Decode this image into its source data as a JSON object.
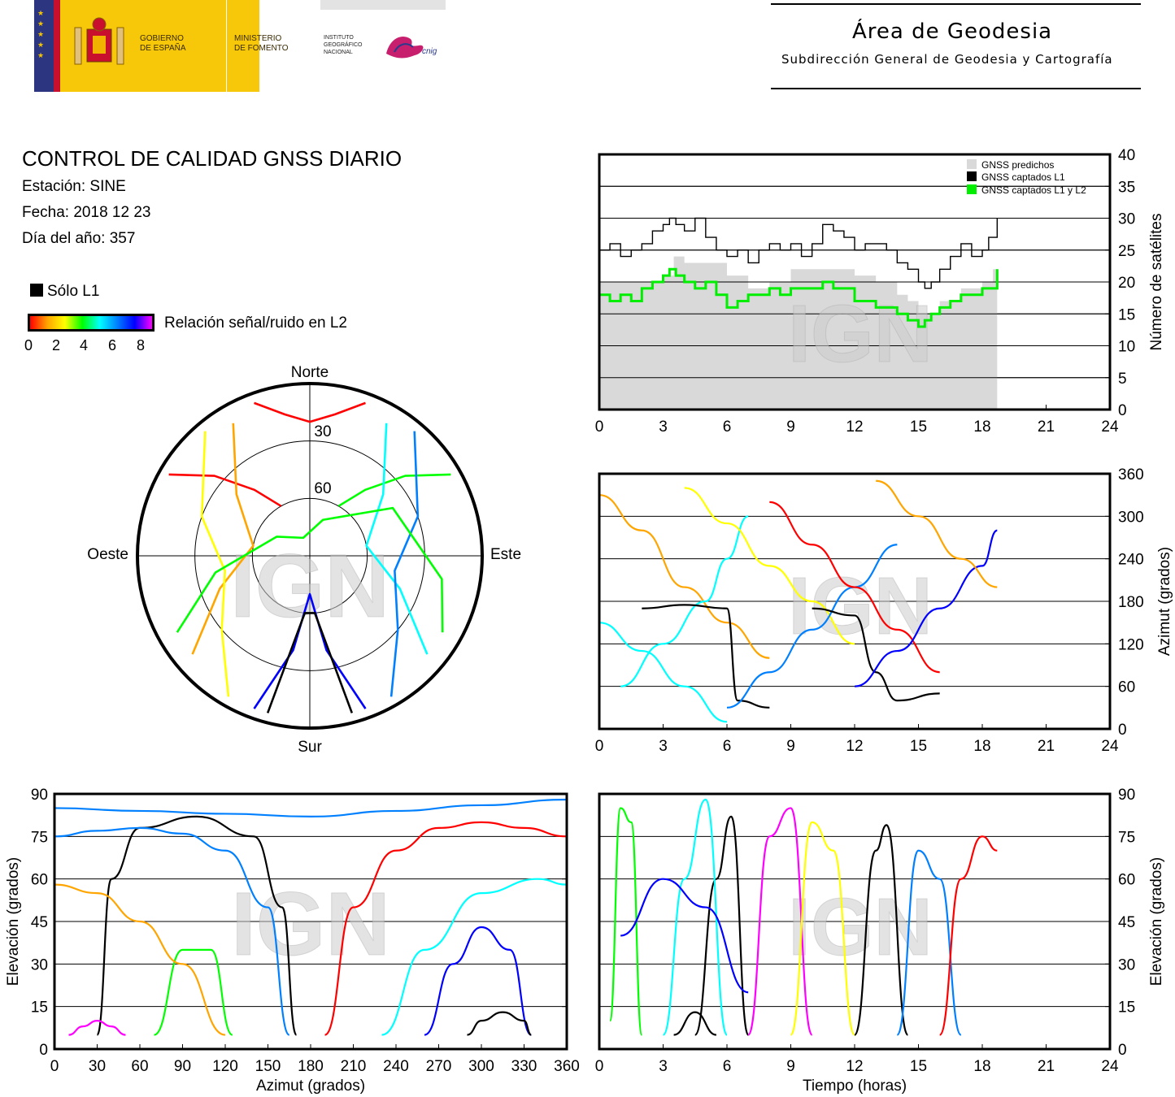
{
  "header": {
    "gov_line1": "GOBIERNO",
    "gov_line2": "DE ESPAÑA",
    "min_line1": "MINISTERIO",
    "min_line2": "DE FOMENTO",
    "ign_line1": "INSTITUTO",
    "ign_line2": "GEOGRÁFICO",
    "ign_line3": "NACIONAL",
    "cnig": "cnig",
    "area_title": "Área de Geodesia",
    "area_subtitle": "Subdirección General de Geodesia y Cartografía"
  },
  "info": {
    "title": "CONTROL DE CALIDAD GNSS DIARIO",
    "station": "Estación: SINE",
    "date": "Fecha: 2018 12 23",
    "doy": "Día del año: 357"
  },
  "legend": {
    "l1_only": "Sólo L1",
    "snr_label": "Relación señal/ruido en L2",
    "snr_ticks": [
      "0",
      "2",
      "4",
      "6",
      "8"
    ],
    "snr_colors": [
      "#ff0000",
      "#ffa500",
      "#ffff00",
      "#00ff00",
      "#00ffff",
      "#0080ff",
      "#0000ff",
      "#ff00ff"
    ],
    "l1_color": "#000000"
  },
  "watermark": "IGN",
  "chart_data": [
    {
      "id": "satellite-count",
      "type": "line",
      "ylabel": "Número de satélites",
      "x_ticks": [
        "0",
        "3",
        "6",
        "9",
        "12",
        "15",
        "18",
        "21",
        "24"
      ],
      "y_ticks": [
        "0",
        "5",
        "10",
        "15",
        "20",
        "25",
        "30",
        "35",
        "40"
      ],
      "xlim": [
        0,
        24
      ],
      "ylim": [
        0,
        40
      ],
      "grid": true,
      "legend_position": "top-right",
      "series": [
        {
          "name": "GNSS predichos",
          "color": "#d9d9d9",
          "x": [
            0,
            1,
            2,
            3,
            3.5,
            4,
            5,
            6,
            7,
            8,
            9,
            10,
            11,
            12,
            13,
            14,
            14.5,
            15,
            15.5,
            16,
            17,
            18,
            18.5,
            18.7
          ],
          "values": [
            20,
            20,
            20,
            21,
            24,
            23,
            23,
            21,
            19,
            20,
            22,
            22,
            22,
            21,
            20,
            18,
            17,
            15,
            15,
            17,
            19,
            20,
            22,
            24
          ]
        },
        {
          "name": "GNSS captados L1",
          "color": "#000000",
          "x": [
            0,
            0.5,
            1,
            1.5,
            2,
            2.5,
            3,
            3.3,
            3.6,
            4,
            4.5,
            5,
            5.5,
            6,
            6.5,
            7,
            7.5,
            8,
            8.5,
            9,
            9.5,
            10,
            10.5,
            11,
            11.5,
            12,
            12.5,
            13,
            13.5,
            14,
            14.5,
            15,
            15.3,
            15.6,
            16,
            16.5,
            17,
            17.5,
            18,
            18.3,
            18.7
          ],
          "values": [
            25,
            26,
            24,
            25,
            26,
            28,
            29,
            30,
            29,
            28,
            30,
            27,
            25,
            24,
            25,
            23,
            25,
            26,
            25,
            26,
            24,
            26,
            29,
            28,
            27,
            25,
            26,
            26,
            25,
            23,
            22,
            20,
            19,
            20,
            22,
            24,
            26,
            24,
            25,
            27,
            30
          ]
        },
        {
          "name": "GNSS captados L1 y L2",
          "color": "#00ee00",
          "x": [
            0,
            0.5,
            1,
            1.5,
            2,
            2.5,
            3,
            3.3,
            3.6,
            4,
            4.5,
            5,
            5.5,
            6,
            6.5,
            7,
            7.5,
            8,
            8.5,
            9,
            9.5,
            10,
            10.5,
            11,
            11.5,
            12,
            12.5,
            13,
            13.5,
            14,
            14.5,
            15,
            15.3,
            15.6,
            16,
            16.5,
            17,
            17.5,
            18,
            18.3,
            18.7
          ],
          "values": [
            18,
            17,
            18,
            17,
            19,
            20,
            21,
            22,
            21,
            20,
            19,
            20,
            18,
            16,
            17,
            18,
            18,
            19,
            18,
            19,
            19,
            19,
            20,
            19,
            19,
            17,
            17,
            16,
            16,
            15,
            14,
            13,
            14,
            15,
            16,
            17,
            18,
            18,
            19,
            19,
            22
          ]
        }
      ]
    },
    {
      "id": "polar-skyplot",
      "type": "scatter",
      "direction_labels": {
        "north": "Norte",
        "south": "Sur",
        "west": "Oeste",
        "east": "Este"
      },
      "ring_labels": [
        "30",
        "60"
      ],
      "tracks": [
        {
          "az": [
            300,
            310,
            320,
            330
          ],
          "el": [
            5,
            25,
            45,
            60
          ]
        },
        {
          "az": [
            60,
            50,
            40,
            30
          ],
          "el": [
            5,
            25,
            45,
            60
          ]
        },
        {
          "az": [
            200,
            190,
            180,
            170,
            160
          ],
          "el": [
            5,
            40,
            70,
            40,
            5
          ]
        },
        {
          "az": [
            230,
            250,
            280,
            310,
            330
          ],
          "el": [
            10,
            40,
            60,
            40,
            10
          ]
        },
        {
          "az": [
            130,
            110,
            80,
            50,
            30
          ],
          "el": [
            10,
            40,
            60,
            40,
            10
          ]
        },
        {
          "az": [
            165,
            175,
            185,
            195
          ],
          "el": [
            5,
            60,
            60,
            5
          ]
        },
        {
          "az": [
            210,
            230,
            260,
            290,
            320
          ],
          "el": [
            5,
            30,
            45,
            30,
            5
          ]
        },
        {
          "az": [
            150,
            130,
            100,
            70,
            40
          ],
          "el": [
            5,
            30,
            45,
            30,
            5
          ]
        },
        {
          "az": [
            340,
            350,
            0,
            10,
            20
          ],
          "el": [
            5,
            15,
            20,
            15,
            5
          ]
        },
        {
          "az": [
            240,
            260,
            300,
            340,
            20,
            60,
            100,
            120
          ],
          "el": [
            10,
            40,
            70,
            80,
            70,
            40,
            20,
            10
          ]
        }
      ]
    },
    {
      "id": "azimuth-time",
      "type": "scatter",
      "ylabel": "Azimut (grados)",
      "x_ticks": [
        "0",
        "3",
        "6",
        "9",
        "12",
        "15",
        "18",
        "21",
        "24"
      ],
      "y_ticks": [
        "0",
        "60",
        "120",
        "180",
        "240",
        "300",
        "360"
      ],
      "xlim": [
        0,
        24
      ],
      "ylim": [
        0,
        360
      ],
      "grid": true,
      "tracks": [
        {
          "x": [
            0,
            2,
            4,
            6,
            8
          ],
          "y": [
            330,
            280,
            200,
            150,
            100
          ]
        },
        {
          "x": [
            1,
            3,
            5,
            6,
            7
          ],
          "y": [
            60,
            120,
            180,
            240,
            300
          ]
        },
        {
          "x": [
            2,
            4,
            6,
            6.5,
            8
          ],
          "y": [
            170,
            175,
            170,
            40,
            30
          ]
        },
        {
          "x": [
            4,
            6,
            8,
            10,
            12
          ],
          "y": [
            340,
            290,
            230,
            180,
            120
          ]
        },
        {
          "x": [
            6,
            8,
            10,
            12,
            14
          ],
          "y": [
            30,
            80,
            140,
            200,
            260
          ]
        },
        {
          "x": [
            8,
            10,
            12,
            14,
            16
          ],
          "y": [
            320,
            260,
            200,
            140,
            80
          ]
        },
        {
          "x": [
            10,
            12,
            13,
            14,
            16
          ],
          "y": [
            170,
            160,
            80,
            40,
            50
          ]
        },
        {
          "x": [
            12,
            14,
            16,
            18,
            18.7
          ],
          "y": [
            60,
            110,
            170,
            230,
            280
          ]
        },
        {
          "x": [
            13,
            15,
            17,
            18.7
          ],
          "y": [
            350,
            300,
            240,
            200
          ]
        },
        {
          "x": [
            0,
            2,
            4,
            6
          ],
          "y": [
            150,
            110,
            60,
            10
          ]
        }
      ]
    },
    {
      "id": "elevation-azimuth",
      "type": "scatter",
      "xlabel": "Azimut (grados)",
      "ylabel": "Elevación (grados)",
      "x_ticks": [
        "0",
        "30",
        "60",
        "90",
        "120",
        "150",
        "180",
        "210",
        "240",
        "270",
        "300",
        "330",
        "360"
      ],
      "y_ticks": [
        "0",
        "15",
        "30",
        "45",
        "60",
        "75",
        "90"
      ],
      "xlim": [
        0,
        360
      ],
      "ylim": [
        0,
        90
      ],
      "grid": true,
      "tracks": [
        {
          "x": [
            30,
            40,
            60,
            100,
            140,
            160,
            170
          ],
          "y": [
            5,
            60,
            78,
            82,
            75,
            50,
            5
          ]
        },
        {
          "x": [
            0,
            30,
            60,
            90,
            120,
            150,
            165
          ],
          "y": [
            75,
            77,
            78,
            76,
            70,
            50,
            5
          ]
        },
        {
          "x": [
            190,
            210,
            240,
            270,
            300,
            330,
            360
          ],
          "y": [
            5,
            50,
            70,
            78,
            80,
            78,
            75
          ]
        },
        {
          "x": [
            70,
            90,
            110,
            125
          ],
          "y": [
            5,
            35,
            35,
            5
          ]
        },
        {
          "x": [
            260,
            280,
            300,
            320,
            335
          ],
          "y": [
            5,
            30,
            43,
            35,
            5
          ]
        },
        {
          "x": [
            0,
            30,
            60,
            90,
            120
          ],
          "y": [
            58,
            55,
            45,
            30,
            5
          ]
        },
        {
          "x": [
            230,
            260,
            300,
            340,
            360
          ],
          "y": [
            5,
            35,
            55,
            60,
            58
          ]
        },
        {
          "x": [
            10,
            20,
            30,
            40,
            50
          ],
          "y": [
            5,
            8,
            10,
            8,
            5
          ]
        },
        {
          "x": [
            290,
            300,
            315,
            330,
            335
          ],
          "y": [
            5,
            10,
            13,
            10,
            5
          ]
        },
        {
          "x": [
            0,
            60,
            120,
            180,
            240,
            300,
            360
          ],
          "y": [
            85,
            84,
            83,
            82,
            84,
            86,
            88
          ]
        }
      ]
    },
    {
      "id": "elevation-time",
      "type": "scatter",
      "xlabel": "Tiempo (horas)",
      "ylabel": "Elevación (grados)",
      "x_ticks": [
        "0",
        "3",
        "6",
        "9",
        "12",
        "15",
        "18",
        "21",
        "24"
      ],
      "y_ticks": [
        "0",
        "15",
        "30",
        "45",
        "60",
        "75",
        "90"
      ],
      "xlim": [
        0,
        24
      ],
      "ylim": [
        0,
        90
      ],
      "grid": true,
      "tracks": [
        {
          "x": [
            0.5,
            1,
            1.5,
            2
          ],
          "y": [
            10,
            85,
            80,
            5
          ]
        },
        {
          "x": [
            4.5,
            5.5,
            6.2,
            7
          ],
          "y": [
            5,
            60,
            82,
            5
          ]
        },
        {
          "x": [
            12,
            13,
            13.5,
            14.5
          ],
          "y": [
            5,
            70,
            79,
            5
          ]
        },
        {
          "x": [
            3,
            4,
            5,
            6
          ],
          "y": [
            5,
            60,
            88,
            5
          ]
        },
        {
          "x": [
            7,
            8,
            9,
            10
          ],
          "y": [
            5,
            75,
            85,
            5
          ]
        },
        {
          "x": [
            9,
            10,
            11,
            12
          ],
          "y": [
            5,
            80,
            70,
            5
          ]
        },
        {
          "x": [
            14,
            15,
            16,
            17
          ],
          "y": [
            5,
            70,
            60,
            5
          ]
        },
        {
          "x": [
            16,
            17,
            18,
            18.7
          ],
          "y": [
            5,
            60,
            75,
            70
          ]
        },
        {
          "x": [
            3.5,
            4.5,
            5.5
          ],
          "y": [
            5,
            13,
            5
          ]
        },
        {
          "x": [
            1,
            3,
            5,
            7
          ],
          "y": [
            40,
            60,
            50,
            20
          ]
        }
      ]
    }
  ]
}
